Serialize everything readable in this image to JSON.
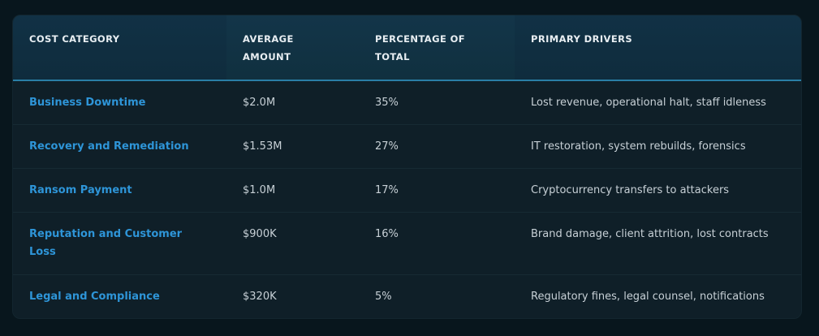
{
  "table": {
    "headers": [
      "COST CATEGORY",
      "AVERAGE AMOUNT",
      "PERCENTAGE OF TOTAL",
      "PRIMARY DRIVERS"
    ],
    "rows": [
      {
        "category": "Business Downtime",
        "amount": "$2.0M",
        "percent": "35%",
        "drivers": "Lost revenue, operational halt, staff idleness"
      },
      {
        "category": "Recovery and Remediation",
        "amount": "$1.53M",
        "percent": "27%",
        "drivers": "IT restoration, system rebuilds, forensics"
      },
      {
        "category": "Ransom Payment",
        "amount": "$1.0M",
        "percent": "17%",
        "drivers": "Cryptocurrency transfers to attackers"
      },
      {
        "category": "Reputation and Customer Loss",
        "amount": "$900K",
        "percent": "16%",
        "drivers": "Brand damage, client attrition, lost contracts"
      },
      {
        "category": "Legal and Compliance",
        "amount": "$320K",
        "percent": "5%",
        "drivers": "Regulatory fines, legal counsel, notifications"
      }
    ]
  },
  "colors": {
    "accent": "#2e95d8",
    "header_border": "#2a7ea6",
    "background": "#08161d"
  }
}
